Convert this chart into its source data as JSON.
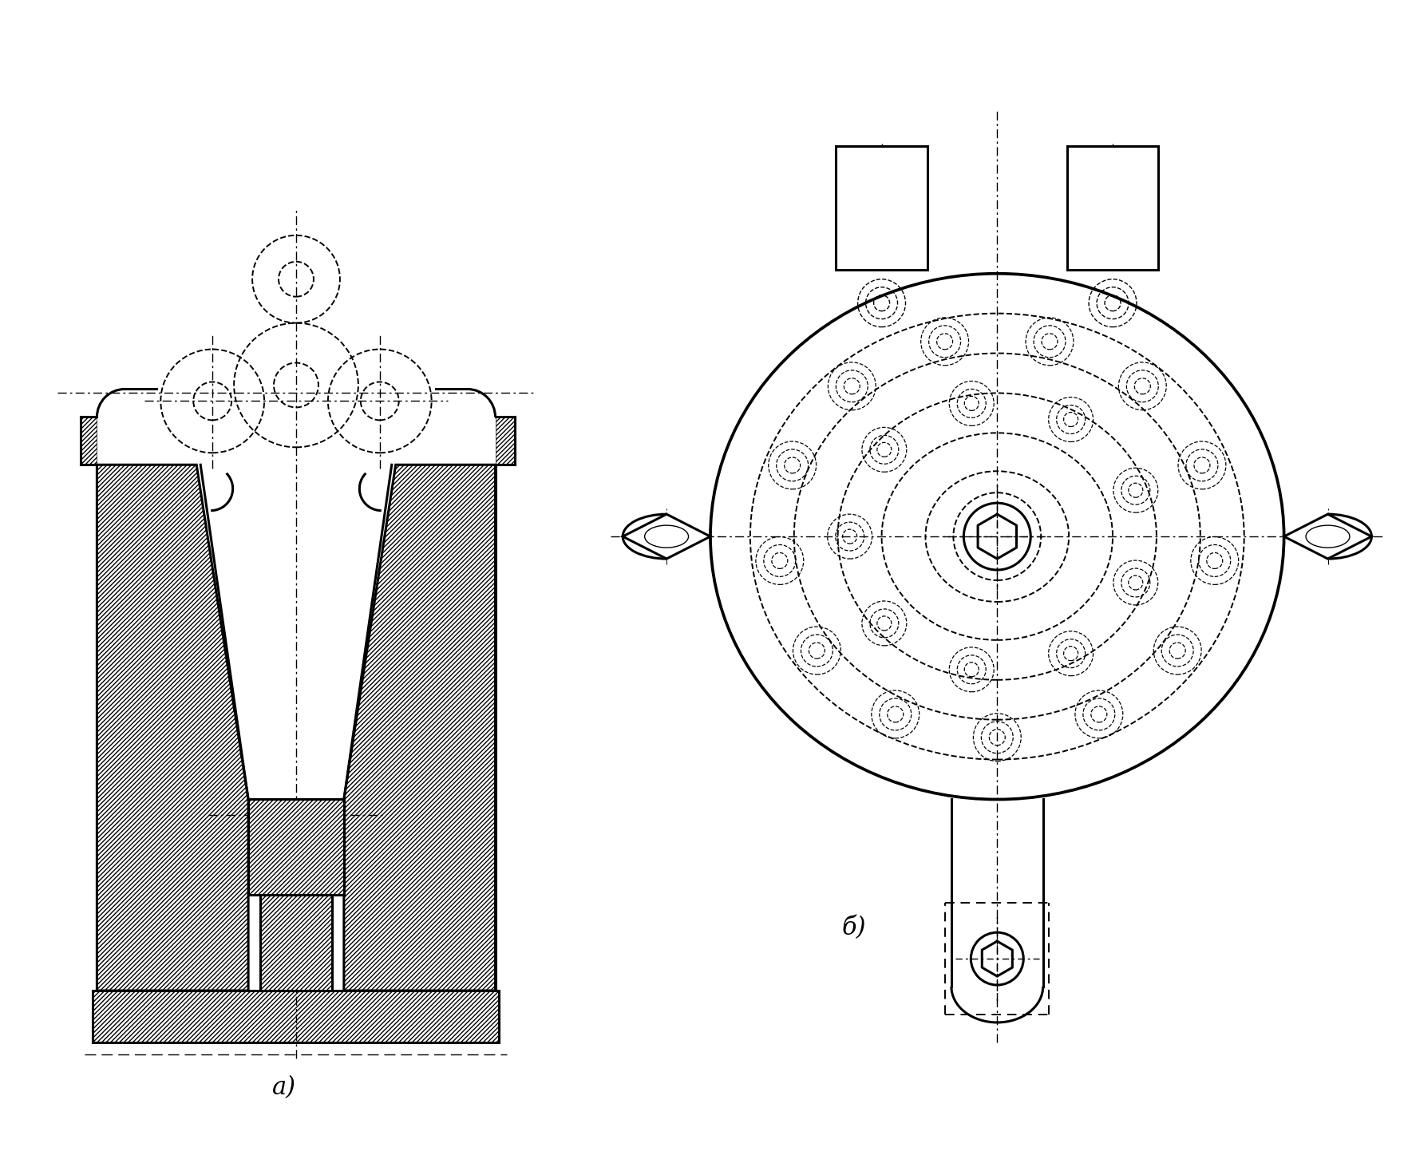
{
  "bg_color": "#ffffff",
  "line_color": "#000000",
  "fig_width": 17.64,
  "fig_height": 14.52,
  "label_a": "а)",
  "label_b": "б)",
  "lw_main": 2.2,
  "lw_thin": 1.0,
  "lw_dashed": 1.4
}
